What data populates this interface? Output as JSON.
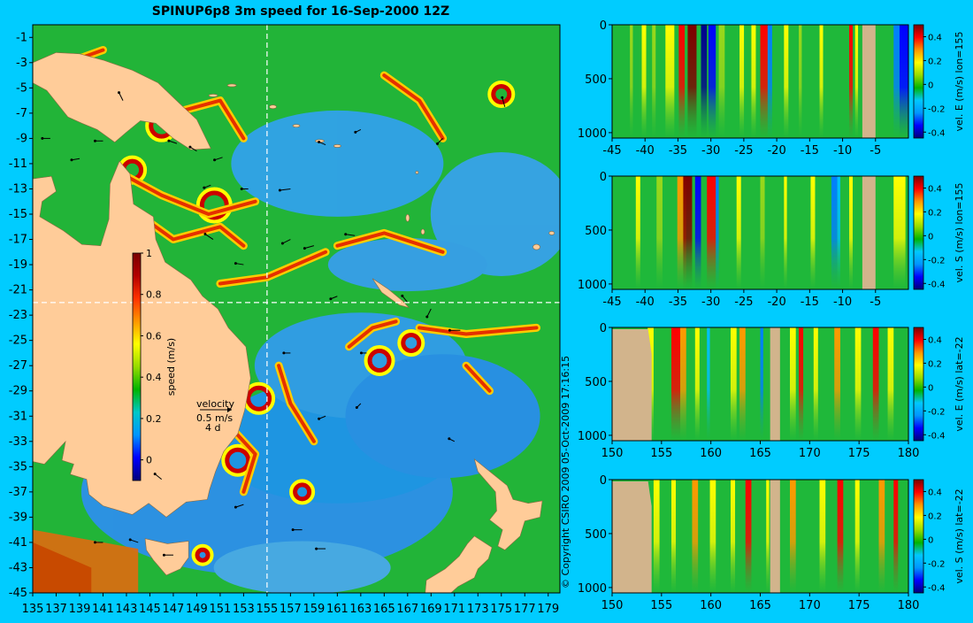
{
  "title": "SPINUP6p8 3m speed for 16-Sep-2000 12Z",
  "copyright": "© Copyright CSIRO 2009   05-Oct-2009 17:16:15",
  "colors": {
    "background": "#00ccff",
    "land": "#ffcc99",
    "section_land": "#d2b48c",
    "guide_line": "#ffffff"
  },
  "colormap": [
    "#00008f",
    "#0000ff",
    "#0080ff",
    "#00c0ff",
    "#00b050",
    "#22c022",
    "#9ad81a",
    "#ffff00",
    "#ff9a00",
    "#ff0000",
    "#800000"
  ],
  "chart_data": [
    {
      "id": "map",
      "type": "heatmap",
      "title": "SPINUP6p8 3m speed for 16-Sep-2000 12Z",
      "x_ticks": [
        "135",
        "137",
        "139",
        "141",
        "143",
        "145",
        "147",
        "149",
        "151",
        "153",
        "155",
        "157",
        "159",
        "161",
        "163",
        "165",
        "167",
        "169",
        "171",
        "173",
        "175",
        "177",
        "179"
      ],
      "y_ticks": [
        "-1",
        "-3",
        "-5",
        "-7",
        "-9",
        "-11",
        "-13",
        "-15",
        "-17",
        "-19",
        "-21",
        "-23",
        "-25",
        "-27",
        "-29",
        "-31",
        "-33",
        "-35",
        "-37",
        "-39",
        "-41",
        "-43",
        "-45"
      ],
      "xlim": [
        135,
        180
      ],
      "ylim": [
        -45,
        0
      ],
      "guides": {
        "lon": 155,
        "lat": -22
      },
      "colorbar": {
        "label": "speed (m/s)",
        "ticks": [
          "0",
          "0.2",
          "0.4",
          "0.6",
          "0.8",
          "1"
        ],
        "range": [
          -0.1,
          1
        ]
      },
      "velocity_key": {
        "label": "velocity",
        "speed": "0.5 m/s",
        "duration": "4 d"
      }
    },
    {
      "id": "section-1",
      "type": "heatmap",
      "x_ticks": [
        "-45",
        "-40",
        "-35",
        "-30",
        "-25",
        "-20",
        "-15",
        "-10",
        "-5"
      ],
      "y_ticks": [
        "0",
        "500",
        "1000"
      ],
      "xlim": [
        -45,
        0
      ],
      "ylim": [
        1050,
        0
      ],
      "colorbar": {
        "label": "vel. E (m/s) lon=155",
        "ticks": [
          "0.4",
          "0.2",
          "0",
          "-0.2",
          "-0.4"
        ],
        "range": [
          -0.45,
          0.5
        ]
      },
      "land_x": [
        [
          -7,
          -5
        ]
      ]
    },
    {
      "id": "section-2",
      "type": "heatmap",
      "x_ticks": [
        "-45",
        "-40",
        "-35",
        "-30",
        "-25",
        "-20",
        "-15",
        "-10",
        "-5"
      ],
      "y_ticks": [
        "0",
        "500",
        "1000"
      ],
      "xlim": [
        -45,
        0
      ],
      "ylim": [
        1050,
        0
      ],
      "colorbar": {
        "label": "vel. S (m/s) lon=155",
        "ticks": [
          "0.4",
          "0.2",
          "0",
          "-0.2",
          "-0.4"
        ],
        "range": [
          -0.45,
          0.5
        ]
      },
      "land_x": [
        [
          -7,
          -5
        ]
      ]
    },
    {
      "id": "section-3",
      "type": "heatmap",
      "x_ticks": [
        "150",
        "155",
        "160",
        "165",
        "170",
        "175",
        "180"
      ],
      "y_ticks": [
        "0",
        "500",
        "1000"
      ],
      "xlim": [
        150,
        180
      ],
      "ylim": [
        1050,
        0
      ],
      "colorbar": {
        "label": "vel. E (m/s) lat=-22",
        "ticks": [
          "0.4",
          "0.2",
          "0",
          "-0.2",
          "-0.4"
        ],
        "range": [
          -0.45,
          0.5
        ]
      },
      "land_x": [
        [
          150,
          154
        ],
        [
          166,
          167
        ]
      ]
    },
    {
      "id": "section-4",
      "type": "heatmap",
      "x_ticks": [
        "150",
        "155",
        "160",
        "165",
        "170",
        "175",
        "180"
      ],
      "y_ticks": [
        "0",
        "500",
        "1000"
      ],
      "xlim": [
        150,
        180
      ],
      "ylim": [
        1050,
        0
      ],
      "colorbar": {
        "label": "vel. S (m/s) lat=-22",
        "ticks": [
          "0.4",
          "0.2",
          "0",
          "-0.2",
          "-0.4"
        ],
        "range": [
          -0.45,
          0.5
        ]
      },
      "land_x": [
        [
          150,
          154
        ],
        [
          166,
          167
        ]
      ]
    }
  ]
}
